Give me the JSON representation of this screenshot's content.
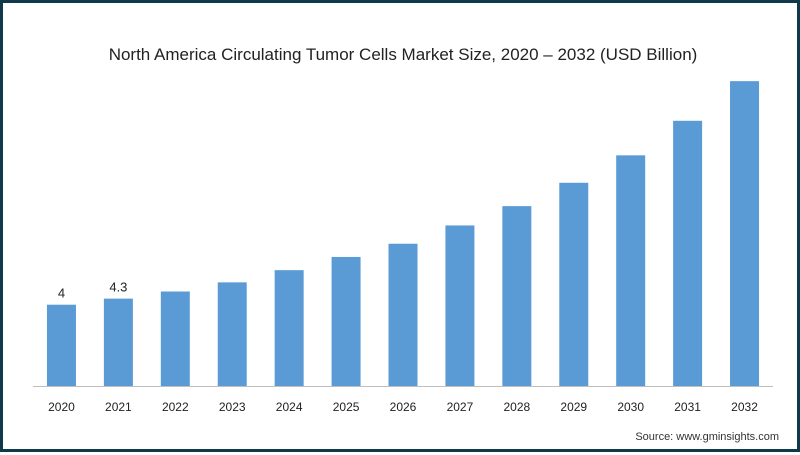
{
  "chart_data": {
    "type": "bar",
    "title": "North America Circulating Tumor Cells Market Size, 2020 – 2032 (USD Billion)",
    "categories": [
      "2020",
      "2021",
      "2022",
      "2023",
      "2024",
      "2025",
      "2026",
      "2027",
      "2028",
      "2029",
      "2030",
      "2031",
      "2032"
    ],
    "values": [
      4.0,
      4.3,
      4.65,
      5.1,
      5.7,
      6.35,
      7.0,
      7.9,
      8.85,
      10.0,
      11.35,
      13.05,
      15.0
    ],
    "data_labels": [
      "4",
      "4.3",
      "",
      "",
      "",
      "",
      "",
      "",
      "",
      "",
      "",
      "",
      ""
    ],
    "ylim": [
      0,
      15.5
    ],
    "grid": false,
    "legend": "none",
    "bar_color": "#5b9bd5",
    "axis_color": "#bfbfbf"
  },
  "source": "Source: www.gminsights.com"
}
